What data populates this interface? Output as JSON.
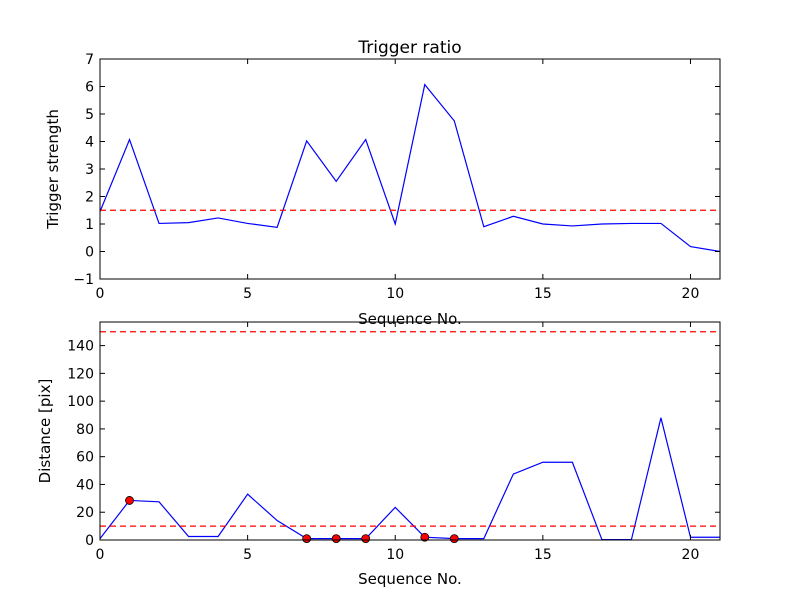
{
  "chart_data": [
    {
      "type": "line",
      "title": "Trigger ratio",
      "xlabel": "Sequence No.",
      "ylabel": "Trigger strength",
      "xlim": [
        0,
        21
      ],
      "ylim": [
        -1,
        7
      ],
      "xticks": [
        0,
        5,
        10,
        15,
        20
      ],
      "yticks": [
        -1,
        0,
        1,
        2,
        3,
        4,
        5,
        6,
        7
      ],
      "xtick_labels": [
        "0",
        "5",
        "10",
        "15",
        "20"
      ],
      "ytick_labels": [
        "−1",
        "0",
        "1",
        "2",
        "3",
        "4",
        "5",
        "6",
        "7"
      ],
      "grid": false,
      "series": [
        {
          "color": "#0000ff",
          "x": [
            0,
            1,
            2,
            3,
            4,
            5,
            6,
            7,
            8,
            9,
            10,
            11,
            12,
            13,
            14,
            15,
            16,
            17,
            18,
            19,
            20,
            21
          ],
          "values": [
            1.45,
            4.07,
            1.02,
            1.05,
            1.22,
            1.02,
            0.88,
            4.02,
            2.55,
            4.07,
            1.0,
            6.07,
            4.75,
            0.9,
            1.28,
            1.0,
            0.93,
            1.0,
            1.02,
            1.02,
            0.18,
            0.0
          ]
        }
      ],
      "threshold_lines": [
        {
          "y": 1.5,
          "color": "#ff0000",
          "style": "dashed"
        }
      ]
    },
    {
      "type": "line",
      "title": "",
      "xlabel": "Sequence No.",
      "ylabel": "Distance [pix]",
      "xlim": [
        0,
        21
      ],
      "ylim": [
        0,
        157
      ],
      "xticks": [
        0,
        5,
        10,
        15,
        20
      ],
      "yticks": [
        0,
        20,
        40,
        60,
        80,
        100,
        120,
        140
      ],
      "xtick_labels": [
        "0",
        "5",
        "10",
        "15",
        "20"
      ],
      "ytick_labels": [
        "0",
        "20",
        "40",
        "60",
        "80",
        "100",
        "120",
        "140"
      ],
      "grid": false,
      "series": [
        {
          "color": "#0000ff",
          "x": [
            0,
            1,
            2,
            3,
            4,
            5,
            6,
            7,
            8,
            9,
            10,
            11,
            12,
            13,
            14,
            15,
            16,
            17,
            18,
            19,
            20,
            21
          ],
          "values": [
            1,
            28.5,
            27.5,
            2.5,
            2.5,
            33,
            14,
            1,
            1,
            1,
            23.5,
            2,
            1,
            1,
            47.5,
            56,
            56,
            0.3,
            0.3,
            88,
            2,
            2
          ]
        }
      ],
      "markers": {
        "color": "#ff0000",
        "x": [
          1,
          7,
          8,
          9,
          11,
          12
        ],
        "values": [
          28.5,
          1,
          1,
          1,
          2,
          1
        ]
      },
      "threshold_lines": [
        {
          "y": 150,
          "color": "#ff0000",
          "style": "dashed"
        },
        {
          "y": 10,
          "color": "#ff0000",
          "style": "dashed"
        }
      ]
    }
  ]
}
